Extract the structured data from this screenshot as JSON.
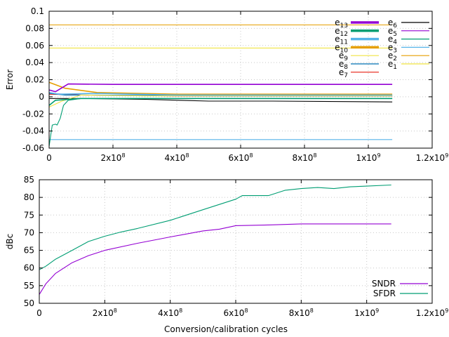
{
  "chart_data": [
    {
      "type": "line",
      "title": "",
      "xlabel": "",
      "ylabel": "Error",
      "xlim": [
        0,
        1200000000.0
      ],
      "ylim": [
        -0.06,
        0.1
      ],
      "xticks": [
        0,
        200000000.0,
        400000000.0,
        600000000.0,
        800000000.0,
        1000000000.0,
        1200000000.0
      ],
      "xtick_labels": [
        {
          "base": "0",
          "exp": ""
        },
        {
          "base": "2x10",
          "exp": "8"
        },
        {
          "base": "4x10",
          "exp": "8"
        },
        {
          "base": "6x10",
          "exp": "8"
        },
        {
          "base": "8x10",
          "exp": "8"
        },
        {
          "base": "1x10",
          "exp": "9"
        },
        {
          "base": "1.2x10",
          "exp": "9"
        }
      ],
      "yticks": [
        -0.06,
        -0.04,
        -0.02,
        0,
        0.02,
        0.04,
        0.06,
        0.08,
        0.1
      ],
      "ytick_labels": [
        "-0.06",
        "-0.04",
        "-0.02",
        "0",
        "0.02",
        "0.04",
        "0.06",
        "0.08",
        "0.1"
      ],
      "grid": true,
      "legend_position": "top-right",
      "series": [
        {
          "name": "e",
          "sub": "13",
          "color": "#9400d3",
          "width": 3.5,
          "values": [
            [
              0,
              0.008
            ],
            [
              20000000.0,
              0.006
            ],
            [
              60000000.0,
              0.015
            ],
            [
              200000000.0,
              0.0145
            ],
            [
              600000000.0,
              0.0145
            ],
            [
              1075000000.0,
              0.0145
            ]
          ]
        },
        {
          "name": "e",
          "sub": "12",
          "color": "#009e73",
          "width": 3.5,
          "values": [
            [
              0,
              -0.01
            ],
            [
              20000000.0,
              -0.004
            ],
            [
              100000000.0,
              -0.002
            ],
            [
              400000000.0,
              -0.002
            ],
            [
              1075000000.0,
              -0.002
            ]
          ]
        },
        {
          "name": "e",
          "sub": "11",
          "color": "#56b4e9",
          "width": 3.5,
          "values": [
            [
              0,
              0.005
            ],
            [
              30000000.0,
              0.003
            ],
            [
              150000000.0,
              0.004
            ],
            [
              400000000.0,
              0.002
            ],
            [
              1075000000.0,
              0.002
            ]
          ]
        },
        {
          "name": "e",
          "sub": "10",
          "color": "#e69f00",
          "width": 3.5,
          "values": [
            [
              0,
              0.017
            ],
            [
              50000000.0,
              0.01
            ],
            [
              150000000.0,
              0.005
            ],
            [
              400000000.0,
              0.003
            ],
            [
              1075000000.0,
              0.003
            ]
          ]
        },
        {
          "name": "e",
          "sub": "9",
          "color": "#f0e442",
          "width": 1.2,
          "values": [
            [
              0,
              -0.012
            ],
            [
              40000000.0,
              -0.005
            ],
            [
              100000000.0,
              0.002
            ],
            [
              300000000.0,
              0.001
            ],
            [
              1075000000.0,
              0.001
            ]
          ]
        },
        {
          "name": "e",
          "sub": "8",
          "color": "#0072b2",
          "width": 1.2,
          "values": [
            [
              0,
              0.004
            ],
            [
              50000000.0,
              0.002
            ],
            [
              150000000.0,
              0.002
            ],
            [
              500000000.0,
              0.001
            ],
            [
              1075000000.0,
              0.001
            ]
          ]
        },
        {
          "name": "e",
          "sub": "7",
          "color": "#e51e10",
          "width": 1.2,
          "values": [
            [
              0,
              0.003
            ],
            [
              100000000.0,
              0.002
            ],
            [
              400000000.0,
              0.001
            ],
            [
              1075000000.0,
              0.001
            ]
          ]
        },
        {
          "name": "e",
          "sub": "6",
          "color": "#000000",
          "width": 1.2,
          "values": [
            [
              0,
              -0.002
            ],
            [
              100000000.0,
              -0.002
            ],
            [
              300000000.0,
              -0.003
            ],
            [
              500000000.0,
              -0.005
            ],
            [
              700000000.0,
              -0.005
            ],
            [
              1075000000.0,
              -0.006
            ]
          ]
        },
        {
          "name": "e",
          "sub": "5",
          "color": "#9400d3",
          "width": 1.2,
          "values": [
            [
              0,
              0.004
            ],
            [
              100000000.0,
              0.002
            ],
            [
              400000000.0,
              0.001
            ],
            [
              1075000000.0,
              0.001
            ]
          ]
        },
        {
          "name": "e",
          "sub": "4",
          "color": "#009e73",
          "width": 1.2,
          "values": [
            [
              0,
              -0.058
            ],
            [
              5000000.0,
              -0.045
            ],
            [
              10000000.0,
              -0.033
            ],
            [
              20000000.0,
              -0.032
            ],
            [
              25000000.0,
              -0.033
            ],
            [
              35000000.0,
              -0.025
            ],
            [
              45000000.0,
              -0.01
            ],
            [
              60000000.0,
              -0.004
            ],
            [
              100000000.0,
              -0.002
            ],
            [
              1075000000.0,
              -0.002
            ]
          ]
        },
        {
          "name": "e",
          "sub": "3",
          "color": "#56b4e9",
          "width": 1.2,
          "values": [
            [
              0,
              -0.05
            ],
            [
              1075000000.0,
              -0.05
            ]
          ]
        },
        {
          "name": "e",
          "sub": "2",
          "color": "#e69f00",
          "width": 1.2,
          "values": [
            [
              0,
              0.084
            ],
            [
              1075000000.0,
              0.084
            ]
          ]
        },
        {
          "name": "e",
          "sub": "1",
          "color": "#f0e442",
          "width": 1.2,
          "values": [
            [
              0,
              0.057
            ],
            [
              1075000000.0,
              0.057
            ]
          ]
        }
      ]
    },
    {
      "type": "line",
      "title": "",
      "xlabel": "Conversion/calibration cycles",
      "ylabel": "dBc",
      "xlim": [
        0,
        1200000000.0
      ],
      "ylim": [
        50,
        85
      ],
      "xticks": [
        0,
        200000000.0,
        400000000.0,
        600000000.0,
        800000000.0,
        1000000000.0,
        1200000000.0
      ],
      "xtick_labels": [
        {
          "base": "0",
          "exp": ""
        },
        {
          "base": "2x10",
          "exp": "8"
        },
        {
          "base": "4x10",
          "exp": "8"
        },
        {
          "base": "6x10",
          "exp": "8"
        },
        {
          "base": "8x10",
          "exp": "8"
        },
        {
          "base": "1x10",
          "exp": "9"
        },
        {
          "base": "1.2x10",
          "exp": "9"
        }
      ],
      "yticks": [
        50,
        55,
        60,
        65,
        70,
        75,
        80,
        85
      ],
      "ytick_labels": [
        "50",
        "55",
        "60",
        "65",
        "70",
        "75",
        "80",
        "85"
      ],
      "grid": true,
      "legend_position": "bottom-right",
      "series": [
        {
          "name": "SNDR",
          "sub": "",
          "color": "#9400d3",
          "width": 1.2,
          "values": [
            [
              0,
              52.5
            ],
            [
              20000000.0,
              55.5
            ],
            [
              50000000.0,
              58.5
            ],
            [
              100000000.0,
              61.5
            ],
            [
              150000000.0,
              63.5
            ],
            [
              200000000.0,
              65
            ],
            [
              300000000.0,
              67
            ],
            [
              400000000.0,
              68.8
            ],
            [
              500000000.0,
              70.5
            ],
            [
              550000000.0,
              71
            ],
            [
              600000000.0,
              72
            ],
            [
              700000000.0,
              72.2
            ],
            [
              800000000.0,
              72.5
            ],
            [
              900000000.0,
              72.5
            ],
            [
              1000000000.0,
              72.5
            ],
            [
              1075000000.0,
              72.5
            ]
          ]
        },
        {
          "name": "SFDR",
          "sub": "",
          "color": "#009e73",
          "width": 1.2,
          "values": [
            [
              0,
              59.5
            ],
            [
              20000000.0,
              60.5
            ],
            [
              50000000.0,
              62.5
            ],
            [
              100000000.0,
              65
            ],
            [
              150000000.0,
              67.5
            ],
            [
              200000000.0,
              69
            ],
            [
              250000000.0,
              70.2
            ],
            [
              300000000.0,
              71.2
            ],
            [
              400000000.0,
              73.5
            ],
            [
              500000000.0,
              76.5
            ],
            [
              600000000.0,
              79.5
            ],
            [
              620000000.0,
              80.5
            ],
            [
              650000000.0,
              80.5
            ],
            [
              700000000.0,
              80.5
            ],
            [
              750000000.0,
              82
            ],
            [
              800000000.0,
              82.5
            ],
            [
              850000000.0,
              82.8
            ],
            [
              900000000.0,
              82.5
            ],
            [
              950000000.0,
              83
            ],
            [
              1000000000.0,
              83.2
            ],
            [
              1075000000.0,
              83.5
            ]
          ]
        }
      ]
    }
  ]
}
